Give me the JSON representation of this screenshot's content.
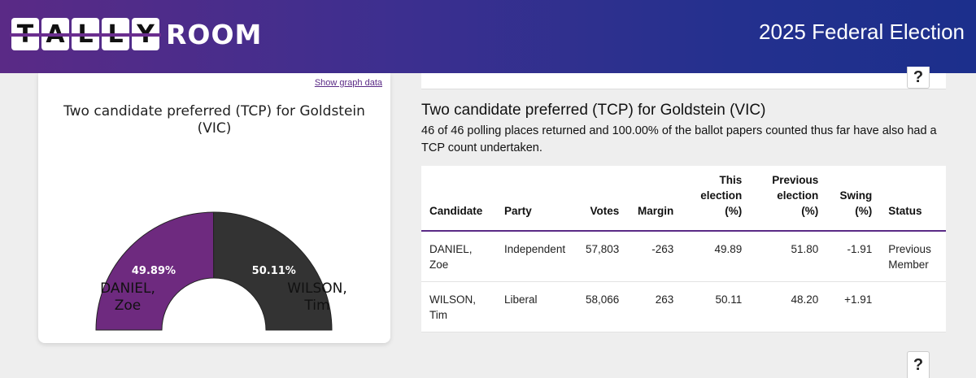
{
  "header": {
    "logo_tally_letters": [
      "T",
      "A",
      "L",
      "L",
      "Y"
    ],
    "logo_room": "ROOM",
    "site_title": "2025 Federal Election"
  },
  "graph_card": {
    "show_graph_link": "Show graph data",
    "title": "Two candidate preferred (TCP) for Goldstein (VIC)",
    "left_candidate": {
      "surname": "DANIEL,",
      "given": "Zoe",
      "pct_label": "49.89%",
      "pct": 49.89,
      "color": "#6e2a7f"
    },
    "right_candidate": {
      "surname": "WILSON,",
      "given": "Tim",
      "pct_label": "50.11%",
      "pct": 50.11,
      "color": "#333333"
    }
  },
  "section": {
    "help_label": "?",
    "title": "Two candidate preferred (TCP) for Goldstein (VIC)",
    "description": "46 of 46 polling places returned and 100.00% of the ballot papers counted thus far have also had a TCP count undertaken."
  },
  "table": {
    "headers": {
      "candidate": "Candidate",
      "party": "Party",
      "votes": "Votes",
      "margin": "Margin",
      "this_1": "This",
      "this_2": "election",
      "this_3": "(%)",
      "prev_1": "Previous",
      "prev_2": "election",
      "prev_3": "(%)",
      "swing_1": "Swing",
      "swing_2": "(%)",
      "status": "Status"
    },
    "rows": [
      {
        "surname": "DANIEL,",
        "given": "Zoe",
        "party": "Independent",
        "votes": "57,803",
        "margin": "-263",
        "this": "49.89",
        "prev": "51.80",
        "swing": "-1.91",
        "status_1": "Previous",
        "status_2": "Member"
      },
      {
        "surname": "WILSON,",
        "given": "Tim",
        "party": "Liberal",
        "votes": "58,066",
        "margin": "263",
        "this": "50.11",
        "prev": "48.20",
        "swing": "+1.91",
        "status_1": "",
        "status_2": ""
      }
    ]
  }
}
